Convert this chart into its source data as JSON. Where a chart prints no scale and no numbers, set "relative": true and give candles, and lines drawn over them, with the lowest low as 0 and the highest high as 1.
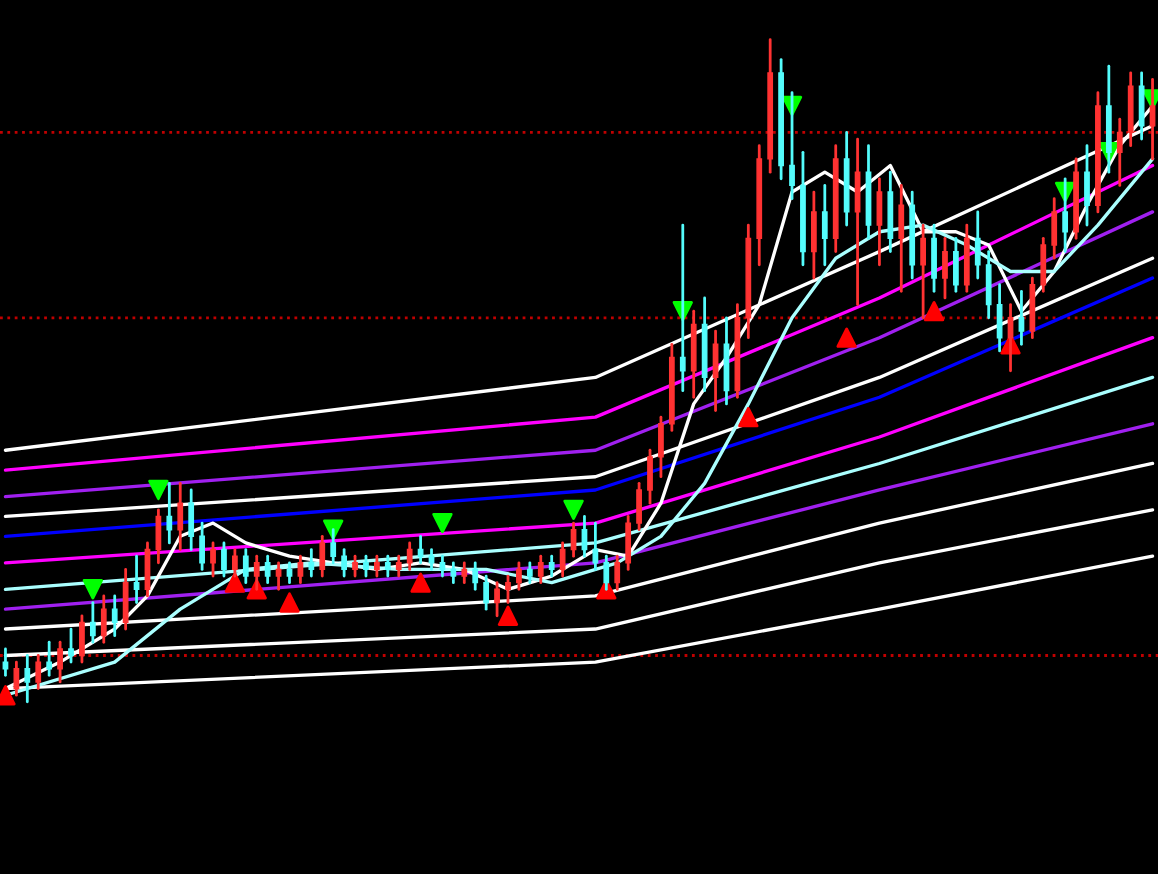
{
  "chart_data": {
    "type": "candlestick",
    "relative": true,
    "tick_labels": false,
    "categories": [
      null,
      null,
      null,
      null,
      null,
      null,
      null,
      null,
      null,
      null,
      null,
      null,
      null,
      null,
      null,
      null,
      null,
      null,
      null,
      null,
      null,
      null,
      null,
      null,
      null,
      null,
      null,
      null,
      null,
      null,
      null,
      null,
      null,
      null,
      null,
      null,
      null,
      null,
      null,
      null,
      null,
      null,
      null,
      null,
      null,
      null,
      null,
      null,
      null,
      null,
      null,
      null,
      null,
      null,
      null,
      null,
      null,
      null,
      null,
      null,
      null,
      null,
      null,
      null,
      null,
      null,
      null,
      null,
      null,
      null,
      null,
      null,
      null,
      null,
      null,
      null,
      null,
      null,
      null,
      null,
      null,
      null,
      null,
      null,
      null,
      null,
      null,
      null,
      null,
      null,
      null,
      null,
      null,
      null,
      null,
      null,
      null,
      null,
      null,
      null,
      null,
      null,
      null,
      null,
      null,
      null
    ],
    "ohlc": [
      [
        0.06,
        0.08,
        0.04,
        0.05
      ],
      [
        0.02,
        0.06,
        0.01,
        0.05
      ],
      [
        0.05,
        0.07,
        0.0,
        0.03
      ],
      [
        0.03,
        0.07,
        0.02,
        0.06
      ],
      [
        0.06,
        0.09,
        0.04,
        0.05
      ],
      [
        0.05,
        0.09,
        0.03,
        0.08
      ],
      [
        0.08,
        0.11,
        0.06,
        0.07
      ],
      [
        0.07,
        0.13,
        0.06,
        0.12
      ],
      [
        0.12,
        0.15,
        0.09,
        0.1
      ],
      [
        0.1,
        0.16,
        0.09,
        0.14
      ],
      [
        0.14,
        0.16,
        0.1,
        0.12
      ],
      [
        0.12,
        0.2,
        0.11,
        0.18
      ],
      [
        0.18,
        0.22,
        0.15,
        0.17
      ],
      [
        0.17,
        0.24,
        0.16,
        0.23
      ],
      [
        0.23,
        0.29,
        0.21,
        0.28
      ],
      [
        0.28,
        0.33,
        0.24,
        0.26
      ],
      [
        0.26,
        0.33,
        0.23,
        0.3
      ],
      [
        0.3,
        0.32,
        0.23,
        0.25
      ],
      [
        0.25,
        0.27,
        0.2,
        0.21
      ],
      [
        0.21,
        0.24,
        0.19,
        0.23
      ],
      [
        0.23,
        0.24,
        0.19,
        0.2
      ],
      [
        0.2,
        0.23,
        0.19,
        0.22
      ],
      [
        0.22,
        0.23,
        0.18,
        0.19
      ],
      [
        0.19,
        0.22,
        0.17,
        0.21
      ],
      [
        0.21,
        0.22,
        0.18,
        0.19
      ],
      [
        0.19,
        0.21,
        0.17,
        0.2
      ],
      [
        0.2,
        0.21,
        0.18,
        0.19
      ],
      [
        0.19,
        0.22,
        0.18,
        0.21
      ],
      [
        0.21,
        0.23,
        0.19,
        0.2
      ],
      [
        0.2,
        0.25,
        0.19,
        0.24
      ],
      [
        0.24,
        0.26,
        0.21,
        0.22
      ],
      [
        0.22,
        0.23,
        0.19,
        0.2
      ],
      [
        0.2,
        0.22,
        0.19,
        0.21
      ],
      [
        0.21,
        0.22,
        0.19,
        0.2
      ],
      [
        0.2,
        0.22,
        0.19,
        0.21
      ],
      [
        0.21,
        0.22,
        0.19,
        0.2
      ],
      [
        0.2,
        0.22,
        0.19,
        0.21
      ],
      [
        0.21,
        0.24,
        0.2,
        0.23
      ],
      [
        0.23,
        0.25,
        0.21,
        0.22
      ],
      [
        0.22,
        0.23,
        0.2,
        0.21
      ],
      [
        0.21,
        0.22,
        0.19,
        0.2
      ],
      [
        0.2,
        0.21,
        0.18,
        0.19
      ],
      [
        0.19,
        0.21,
        0.18,
        0.2
      ],
      [
        0.2,
        0.21,
        0.17,
        0.18
      ],
      [
        0.18,
        0.19,
        0.14,
        0.15
      ],
      [
        0.15,
        0.18,
        0.13,
        0.17
      ],
      [
        0.17,
        0.19,
        0.15,
        0.18
      ],
      [
        0.18,
        0.21,
        0.17,
        0.2
      ],
      [
        0.2,
        0.21,
        0.18,
        0.19
      ],
      [
        0.19,
        0.22,
        0.18,
        0.21
      ],
      [
        0.21,
        0.22,
        0.19,
        0.2
      ],
      [
        0.2,
        0.24,
        0.19,
        0.23
      ],
      [
        0.23,
        0.27,
        0.22,
        0.26
      ],
      [
        0.26,
        0.28,
        0.22,
        0.23
      ],
      [
        0.23,
        0.27,
        0.2,
        0.21
      ],
      [
        0.21,
        0.22,
        0.17,
        0.18
      ],
      [
        0.18,
        0.22,
        0.17,
        0.21
      ],
      [
        0.21,
        0.28,
        0.2,
        0.27
      ],
      [
        0.27,
        0.33,
        0.26,
        0.32
      ],
      [
        0.32,
        0.38,
        0.3,
        0.37
      ],
      [
        0.37,
        0.43,
        0.34,
        0.42
      ],
      [
        0.42,
        0.54,
        0.41,
        0.52
      ],
      [
        0.52,
        0.72,
        0.47,
        0.5
      ],
      [
        0.5,
        0.59,
        0.46,
        0.57
      ],
      [
        0.57,
        0.61,
        0.47,
        0.49
      ],
      [
        0.49,
        0.56,
        0.44,
        0.54
      ],
      [
        0.54,
        0.58,
        0.45,
        0.47
      ],
      [
        0.47,
        0.6,
        0.46,
        0.58
      ],
      [
        0.58,
        0.72,
        0.55,
        0.7
      ],
      [
        0.7,
        0.84,
        0.66,
        0.82
      ],
      [
        0.82,
        1.0,
        0.8,
        0.95
      ],
      [
        0.95,
        0.97,
        0.79,
        0.81
      ],
      [
        0.81,
        0.92,
        0.76,
        0.78
      ],
      [
        0.78,
        0.83,
        0.66,
        0.68
      ],
      [
        0.68,
        0.77,
        0.64,
        0.74
      ],
      [
        0.74,
        0.78,
        0.66,
        0.7
      ],
      [
        0.7,
        0.84,
        0.68,
        0.82
      ],
      [
        0.82,
        0.86,
        0.72,
        0.74
      ],
      [
        0.74,
        0.85,
        0.6,
        0.8
      ],
      [
        0.8,
        0.84,
        0.7,
        0.72
      ],
      [
        0.72,
        0.79,
        0.66,
        0.77
      ],
      [
        0.77,
        0.8,
        0.68,
        0.7
      ],
      [
        0.7,
        0.78,
        0.62,
        0.75
      ],
      [
        0.75,
        0.77,
        0.64,
        0.66
      ],
      [
        0.66,
        0.72,
        0.58,
        0.7
      ],
      [
        0.7,
        0.72,
        0.62,
        0.64
      ],
      [
        0.64,
        0.7,
        0.61,
        0.68
      ],
      [
        0.68,
        0.7,
        0.62,
        0.63
      ],
      [
        0.63,
        0.72,
        0.62,
        0.7
      ],
      [
        0.7,
        0.74,
        0.64,
        0.66
      ],
      [
        0.66,
        0.68,
        0.58,
        0.6
      ],
      [
        0.6,
        0.63,
        0.53,
        0.55
      ],
      [
        0.55,
        0.6,
        0.5,
        0.58
      ],
      [
        0.58,
        0.62,
        0.54,
        0.56
      ],
      [
        0.56,
        0.64,
        0.55,
        0.63
      ],
      [
        0.63,
        0.7,
        0.62,
        0.69
      ],
      [
        0.69,
        0.76,
        0.67,
        0.74
      ],
      [
        0.74,
        0.79,
        0.68,
        0.71
      ],
      [
        0.71,
        0.82,
        0.7,
        0.8
      ],
      [
        0.8,
        0.84,
        0.72,
        0.75
      ],
      [
        0.75,
        0.92,
        0.74,
        0.9
      ],
      [
        0.9,
        0.96,
        0.8,
        0.83
      ],
      [
        0.83,
        0.88,
        0.78,
        0.86
      ],
      [
        0.86,
        0.95,
        0.84,
        0.93
      ],
      [
        0.93,
        0.95,
        0.85,
        0.87
      ],
      [
        0.87,
        0.94,
        0.82,
        0.9
      ]
    ],
    "colors": [
      "#54fcfc",
      "#ff3232",
      "#54fcfc",
      "#ff3232",
      "#54fcfc",
      "#ff3232",
      "#54fcfc",
      "#ff3232",
      "#54fcfc",
      "#ff3232",
      "#54fcfc",
      "#ff3232",
      "#54fcfc",
      "#ff3232",
      "#ff3232",
      "#54fcfc",
      "#ff3232",
      "#54fcfc",
      "#54fcfc",
      "#ff3232",
      "#54fcfc",
      "#ff3232",
      "#54fcfc",
      "#ff3232",
      "#54fcfc",
      "#ff3232",
      "#54fcfc",
      "#ff3232",
      "#54fcfc",
      "#ff3232",
      "#54fcfc",
      "#54fcfc",
      "#ff3232",
      "#54fcfc",
      "#ff3232",
      "#54fcfc",
      "#ff3232",
      "#ff3232",
      "#54fcfc",
      "#54fcfc",
      "#54fcfc",
      "#54fcfc",
      "#ff3232",
      "#54fcfc",
      "#54fcfc",
      "#ff3232",
      "#ff3232",
      "#ff3232",
      "#54fcfc",
      "#ff3232",
      "#54fcfc",
      "#ff3232",
      "#ff3232",
      "#54fcfc",
      "#54fcfc",
      "#54fcfc",
      "#ff3232",
      "#ff3232",
      "#ff3232",
      "#ff3232",
      "#ff3232",
      "#ff3232",
      "#54fcfc",
      "#ff3232",
      "#54fcfc",
      "#ff3232",
      "#54fcfc",
      "#ff3232",
      "#ff3232",
      "#ff3232",
      "#ff3232",
      "#54fcfc",
      "#54fcfc",
      "#54fcfc",
      "#ff3232",
      "#54fcfc",
      "#ff3232",
      "#54fcfc",
      "#ff3232",
      "#54fcfc",
      "#ff3232",
      "#54fcfc",
      "#ff3232",
      "#54fcfc",
      "#ff3232",
      "#54fcfc",
      "#ff3232",
      "#54fcfc",
      "#ff3232",
      "#54fcfc",
      "#54fcfc",
      "#54fcfc",
      "#ff3232",
      "#54fcfc",
      "#ff3232",
      "#ff3232",
      "#ff3232",
      "#54fcfc",
      "#ff3232",
      "#54fcfc",
      "#ff3232",
      "#54fcfc",
      "#ff3232",
      "#ff3232",
      "#54fcfc",
      "#ff3232"
    ],
    "series": [
      {
        "type": "line",
        "color": "#ffffff",
        "values": [
          0.38,
          null,
          null,
          null,
          null,
          null,
          null,
          null,
          null,
          null,
          null,
          null,
          null,
          null,
          null,
          null,
          null,
          null,
          null,
          null,
          null,
          null,
          null,
          null,
          null,
          null,
          null,
          null,
          null,
          null,
          null,
          null,
          null,
          null,
          null,
          null,
          null,
          null,
          null,
          null,
          null,
          null,
          null,
          null,
          null,
          null,
          null,
          null,
          null,
          null,
          null,
          null,
          null,
          null,
          0.49,
          null,
          null,
          null,
          null,
          null,
          null,
          null,
          null,
          null,
          null,
          null,
          null,
          null,
          null,
          null,
          null,
          null,
          null,
          null,
          null,
          null,
          null,
          null,
          null,
          null,
          0.68,
          null,
          null,
          null,
          null,
          null,
          null,
          null,
          null,
          null,
          null,
          null,
          null,
          null,
          null,
          null,
          null,
          null,
          null,
          null,
          null,
          null,
          null,
          null,
          null,
          0.87
        ]
      },
      {
        "type": "line",
        "color": "#ff00ff",
        "values": [
          0.35,
          null,
          null,
          null,
          null,
          null,
          null,
          null,
          null,
          null,
          null,
          null,
          null,
          null,
          null,
          null,
          null,
          null,
          null,
          null,
          null,
          null,
          null,
          null,
          null,
          null,
          null,
          null,
          null,
          null,
          null,
          null,
          null,
          null,
          null,
          null,
          null,
          null,
          null,
          null,
          null,
          null,
          null,
          null,
          null,
          null,
          null,
          null,
          null,
          null,
          null,
          null,
          null,
          null,
          0.43,
          null,
          null,
          null,
          null,
          null,
          null,
          null,
          null,
          null,
          null,
          null,
          null,
          null,
          null,
          null,
          null,
          null,
          null,
          null,
          null,
          null,
          null,
          null,
          null,
          null,
          0.61,
          null,
          null,
          null,
          null,
          null,
          null,
          null,
          null,
          null,
          null,
          null,
          null,
          null,
          null,
          null,
          null,
          null,
          null,
          null,
          null,
          null,
          null,
          null,
          null,
          0.81
        ]
      },
      {
        "type": "line",
        "color": "#a020f0",
        "values": [
          0.31,
          null,
          null,
          null,
          null,
          null,
          null,
          null,
          null,
          null,
          null,
          null,
          null,
          null,
          null,
          null,
          null,
          null,
          null,
          null,
          null,
          null,
          null,
          null,
          null,
          null,
          null,
          null,
          null,
          null,
          null,
          null,
          null,
          null,
          null,
          null,
          null,
          null,
          null,
          null,
          null,
          null,
          null,
          null,
          null,
          null,
          null,
          null,
          null,
          null,
          null,
          null,
          null,
          null,
          0.38,
          null,
          null,
          null,
          null,
          null,
          null,
          null,
          null,
          null,
          null,
          null,
          null,
          null,
          null,
          null,
          null,
          null,
          null,
          null,
          null,
          null,
          null,
          null,
          null,
          null,
          0.55,
          null,
          null,
          null,
          null,
          null,
          null,
          null,
          null,
          null,
          null,
          null,
          null,
          null,
          null,
          null,
          null,
          null,
          null,
          null,
          null,
          null,
          null,
          null,
          null,
          0.74
        ]
      },
      {
        "type": "line",
        "color": "#ffffff",
        "values": [
          0.28,
          null,
          null,
          null,
          null,
          null,
          null,
          null,
          null,
          null,
          null,
          null,
          null,
          null,
          null,
          null,
          null,
          null,
          null,
          null,
          null,
          null,
          null,
          null,
          null,
          null,
          null,
          null,
          null,
          null,
          null,
          null,
          null,
          null,
          null,
          null,
          null,
          null,
          null,
          null,
          null,
          null,
          null,
          null,
          null,
          null,
          null,
          null,
          null,
          null,
          null,
          null,
          null,
          null,
          0.34,
          null,
          null,
          null,
          null,
          null,
          null,
          null,
          null,
          null,
          null,
          null,
          null,
          null,
          null,
          null,
          null,
          null,
          null,
          null,
          null,
          null,
          null,
          null,
          null,
          null,
          0.49,
          null,
          null,
          null,
          null,
          null,
          null,
          null,
          null,
          null,
          null,
          null,
          null,
          null,
          null,
          null,
          null,
          null,
          null,
          null,
          null,
          null,
          null,
          null,
          null,
          0.67
        ]
      },
      {
        "type": "line",
        "color": "#0000ff",
        "values": [
          0.25,
          null,
          null,
          null,
          null,
          null,
          null,
          null,
          null,
          null,
          null,
          null,
          null,
          null,
          null,
          null,
          null,
          null,
          null,
          null,
          null,
          null,
          null,
          null,
          null,
          null,
          null,
          null,
          null,
          null,
          null,
          null,
          null,
          null,
          null,
          null,
          null,
          null,
          null,
          null,
          null,
          null,
          null,
          null,
          null,
          null,
          null,
          null,
          null,
          null,
          null,
          null,
          null,
          null,
          0.32,
          null,
          null,
          null,
          null,
          null,
          null,
          null,
          null,
          null,
          null,
          null,
          null,
          null,
          null,
          null,
          null,
          null,
          null,
          null,
          null,
          null,
          null,
          null,
          null,
          null,
          0.46,
          null,
          null,
          null,
          null,
          null,
          null,
          null,
          null,
          null,
          null,
          null,
          null,
          null,
          null,
          null,
          null,
          null,
          null,
          null,
          null,
          null,
          null,
          null,
          null,
          0.64
        ]
      },
      {
        "type": "line",
        "color": "#ff00ff",
        "values": [
          0.21,
          null,
          null,
          null,
          null,
          null,
          null,
          null,
          null,
          null,
          null,
          null,
          null,
          null,
          null,
          null,
          null,
          null,
          null,
          null,
          null,
          null,
          null,
          null,
          null,
          null,
          null,
          null,
          null,
          null,
          null,
          null,
          null,
          null,
          null,
          null,
          null,
          null,
          null,
          null,
          null,
          null,
          null,
          null,
          null,
          null,
          null,
          null,
          null,
          null,
          null,
          null,
          null,
          null,
          0.27,
          null,
          null,
          null,
          null,
          null,
          null,
          null,
          null,
          null,
          null,
          null,
          null,
          null,
          null,
          null,
          null,
          null,
          null,
          null,
          null,
          null,
          null,
          null,
          null,
          null,
          0.4,
          null,
          null,
          null,
          null,
          null,
          null,
          null,
          null,
          null,
          null,
          null,
          null,
          null,
          null,
          null,
          null,
          null,
          null,
          null,
          null,
          null,
          null,
          null,
          null,
          0.55
        ]
      },
      {
        "type": "line",
        "color": "#aaffff",
        "values": [
          0.17,
          null,
          null,
          null,
          null,
          null,
          null,
          null,
          null,
          null,
          null,
          null,
          null,
          null,
          null,
          null,
          null,
          null,
          null,
          null,
          null,
          null,
          null,
          null,
          null,
          null,
          null,
          null,
          null,
          null,
          null,
          null,
          null,
          null,
          null,
          null,
          null,
          null,
          null,
          null,
          null,
          null,
          null,
          null,
          null,
          null,
          null,
          null,
          null,
          null,
          null,
          null,
          null,
          null,
          0.24,
          null,
          null,
          null,
          null,
          null,
          null,
          null,
          null,
          null,
          null,
          null,
          null,
          null,
          null,
          null,
          null,
          null,
          null,
          null,
          null,
          null,
          null,
          null,
          null,
          null,
          0.36,
          null,
          null,
          null,
          null,
          null,
          null,
          null,
          null,
          null,
          null,
          null,
          null,
          null,
          null,
          null,
          null,
          null,
          null,
          null,
          null,
          null,
          null,
          null,
          null,
          0.49
        ]
      },
      {
        "type": "line",
        "color": "#a020f0",
        "values": [
          0.14,
          null,
          null,
          null,
          null,
          null,
          null,
          null,
          null,
          null,
          null,
          null,
          null,
          null,
          null,
          null,
          null,
          null,
          null,
          null,
          null,
          null,
          null,
          null,
          null,
          null,
          null,
          null,
          null,
          null,
          null,
          null,
          null,
          null,
          null,
          null,
          null,
          null,
          null,
          null,
          null,
          null,
          null,
          null,
          null,
          null,
          null,
          null,
          null,
          null,
          null,
          null,
          null,
          null,
          0.21,
          null,
          null,
          null,
          null,
          null,
          null,
          null,
          null,
          null,
          null,
          null,
          null,
          null,
          null,
          null,
          null,
          null,
          null,
          null,
          null,
          null,
          null,
          null,
          null,
          null,
          0.32,
          null,
          null,
          null,
          null,
          null,
          null,
          null,
          null,
          null,
          null,
          null,
          null,
          null,
          null,
          null,
          null,
          null,
          null,
          null,
          null,
          null,
          null,
          null,
          null,
          0.42
        ]
      },
      {
        "type": "line",
        "color": "#ffffff",
        "values": [
          0.11,
          null,
          null,
          null,
          null,
          null,
          null,
          null,
          null,
          null,
          null,
          null,
          null,
          null,
          null,
          null,
          null,
          null,
          null,
          null,
          null,
          null,
          null,
          null,
          null,
          null,
          null,
          null,
          null,
          null,
          null,
          null,
          null,
          null,
          null,
          null,
          null,
          null,
          null,
          null,
          null,
          null,
          null,
          null,
          null,
          null,
          null,
          null,
          null,
          null,
          null,
          null,
          null,
          null,
          0.16,
          null,
          null,
          null,
          null,
          null,
          null,
          null,
          null,
          null,
          null,
          null,
          null,
          null,
          null,
          null,
          null,
          null,
          null,
          null,
          null,
          null,
          null,
          null,
          null,
          null,
          0.27,
          null,
          null,
          null,
          null,
          null,
          null,
          null,
          null,
          null,
          null,
          null,
          null,
          null,
          null,
          null,
          null,
          null,
          null,
          null,
          null,
          null,
          null,
          null,
          null,
          0.36
        ]
      },
      {
        "type": "line",
        "color": "#ffffff",
        "values": [
          0.07,
          null,
          null,
          null,
          null,
          null,
          null,
          null,
          null,
          null,
          null,
          null,
          null,
          null,
          null,
          null,
          null,
          null,
          null,
          null,
          null,
          null,
          null,
          null,
          null,
          null,
          null,
          null,
          null,
          null,
          null,
          null,
          null,
          null,
          null,
          null,
          null,
          null,
          null,
          null,
          null,
          null,
          null,
          null,
          null,
          null,
          null,
          null,
          null,
          null,
          null,
          null,
          null,
          null,
          0.11,
          null,
          null,
          null,
          null,
          null,
          null,
          null,
          null,
          null,
          null,
          null,
          null,
          null,
          null,
          null,
          null,
          null,
          null,
          null,
          null,
          null,
          null,
          null,
          null,
          null,
          0.21,
          null,
          null,
          null,
          null,
          null,
          null,
          null,
          null,
          null,
          null,
          null,
          null,
          null,
          null,
          null,
          null,
          null,
          null,
          null,
          null,
          null,
          null,
          null,
          null,
          0.29
        ]
      },
      {
        "type": "line",
        "color": "#ffffff",
        "values": [
          0.02,
          null,
          null,
          null,
          null,
          null,
          null,
          null,
          null,
          null,
          null,
          null,
          null,
          null,
          null,
          null,
          null,
          null,
          null,
          null,
          null,
          null,
          null,
          null,
          null,
          null,
          null,
          null,
          null,
          null,
          null,
          null,
          null,
          null,
          null,
          null,
          null,
          null,
          null,
          null,
          null,
          null,
          null,
          null,
          null,
          null,
          null,
          null,
          null,
          null,
          null,
          null,
          null,
          null,
          0.06,
          null,
          null,
          null,
          null,
          null,
          null,
          null,
          null,
          null,
          null,
          null,
          null,
          null,
          null,
          null,
          null,
          null,
          null,
          null,
          null,
          null,
          null,
          null,
          null,
          null,
          0.14,
          null,
          null,
          null,
          null,
          null,
          null,
          null,
          null,
          null,
          null,
          null,
          null,
          null,
          null,
          null,
          null,
          null,
          null,
          null,
          null,
          null,
          null,
          null,
          null,
          0.22
        ]
      },
      {
        "type": "line",
        "color": "#ffffff",
        "values": [
          0.02,
          null,
          null,
          null,
          null,
          0.06,
          null,
          null,
          null,
          null,
          0.11,
          null,
          null,
          0.16,
          null,
          null,
          0.25,
          null,
          null,
          0.27,
          null,
          null,
          0.24,
          null,
          null,
          null,
          0.22,
          null,
          null,
          null,
          0.21,
          null,
          null,
          null,
          0.2,
          null,
          null,
          null,
          0.21,
          null,
          null,
          null,
          0.2,
          null,
          null,
          null,
          0.17,
          null,
          null,
          null,
          0.19,
          null,
          null,
          null,
          0.23,
          null,
          null,
          0.22,
          null,
          null,
          0.3,
          null,
          null,
          0.45,
          null,
          null,
          0.52,
          null,
          null,
          0.6,
          null,
          null,
          0.77,
          null,
          null,
          0.8,
          null,
          null,
          0.77,
          null,
          null,
          0.81,
          null,
          null,
          0.71,
          null,
          null,
          0.71,
          null,
          null,
          0.69,
          null,
          null,
          0.59,
          null,
          null,
          0.65,
          null,
          null,
          0.75,
          null,
          null,
          0.84,
          null,
          null,
          0.9
        ]
      },
      {
        "type": "line",
        "color": "#aaffff",
        "values": [
          0.01,
          null,
          null,
          null,
          null,
          null,
          null,
          null,
          null,
          null,
          0.06,
          null,
          null,
          null,
          null,
          null,
          0.14,
          null,
          null,
          null,
          null,
          null,
          0.2,
          null,
          null,
          null,
          null,
          null,
          0.21,
          null,
          null,
          null,
          null,
          null,
          null,
          null,
          0.2,
          null,
          null,
          null,
          null,
          null,
          null,
          null,
          0.2,
          null,
          null,
          null,
          null,
          null,
          0.18,
          null,
          null,
          null,
          null,
          null,
          0.21,
          null,
          null,
          null,
          0.25,
          null,
          null,
          null,
          0.33,
          null,
          null,
          null,
          0.45,
          null,
          null,
          null,
          0.58,
          null,
          null,
          null,
          0.67,
          null,
          null,
          null,
          0.71,
          null,
          null,
          null,
          0.72,
          null,
          null,
          null,
          0.69,
          null,
          null,
          null,
          0.65,
          null,
          null,
          null,
          0.65,
          null,
          null,
          null,
          0.72,
          null,
          null,
          null,
          null,
          0.82
        ]
      },
      {
        "type": "scatter",
        "color": "#ff0000",
        "marker": "triangle",
        "values": [
          0.01,
          null,
          null,
          null,
          null,
          null,
          null,
          null,
          null,
          null,
          null,
          null,
          null,
          null,
          null,
          null,
          null,
          null,
          null,
          null,
          null,
          0.18,
          null,
          0.17,
          null,
          null,
          0.15,
          null,
          null,
          null,
          null,
          null,
          null,
          null,
          null,
          null,
          null,
          null,
          0.18,
          null,
          null,
          null,
          null,
          null,
          null,
          null,
          0.13,
          null,
          null,
          null,
          null,
          null,
          null,
          null,
          null,
          0.17,
          null,
          null,
          null,
          null,
          null,
          null,
          null,
          null,
          null,
          null,
          null,
          null,
          0.43,
          null,
          null,
          null,
          null,
          null,
          null,
          null,
          null,
          0.55,
          null,
          null,
          null,
          null,
          null,
          null,
          null,
          0.59,
          null,
          null,
          null,
          null,
          null,
          null,
          0.54,
          null,
          null,
          null,
          null,
          null,
          null,
          null,
          null,
          null,
          null,
          null,
          null,
          null
        ]
      },
      {
        "type": "scatter",
        "color": "#00ff00",
        "marker": "triangle_down",
        "values": [
          null,
          null,
          null,
          null,
          null,
          null,
          null,
          null,
          0.17,
          null,
          null,
          null,
          null,
          null,
          0.32,
          null,
          null,
          null,
          null,
          null,
          null,
          null,
          null,
          null,
          null,
          null,
          null,
          null,
          null,
          null,
          0.26,
          null,
          null,
          null,
          null,
          null,
          null,
          null,
          null,
          null,
          0.27,
          null,
          null,
          null,
          null,
          null,
          null,
          null,
          null,
          null,
          null,
          null,
          0.29,
          null,
          null,
          null,
          null,
          null,
          null,
          null,
          null,
          null,
          0.59,
          null,
          null,
          null,
          null,
          null,
          null,
          null,
          null,
          null,
          0.9,
          null,
          null,
          null,
          null,
          null,
          null,
          null,
          null,
          null,
          null,
          null,
          null,
          null,
          null,
          null,
          null,
          null,
          null,
          null,
          null,
          null,
          null,
          null,
          null,
          0.77,
          null,
          null,
          null,
          0.83,
          null,
          null,
          null,
          0.91
        ]
      }
    ],
    "ref_lines": [
      {
        "axis": "y",
        "value": 0.86,
        "color": "#c00000",
        "line_style": "dotted"
      },
      {
        "axis": "y",
        "value": 0.58,
        "color": "#c00000",
        "line_style": "dotted"
      },
      {
        "axis": "y",
        "value": 0.07,
        "color": "#c00000",
        "line_style": "dotted"
      }
    ]
  }
}
